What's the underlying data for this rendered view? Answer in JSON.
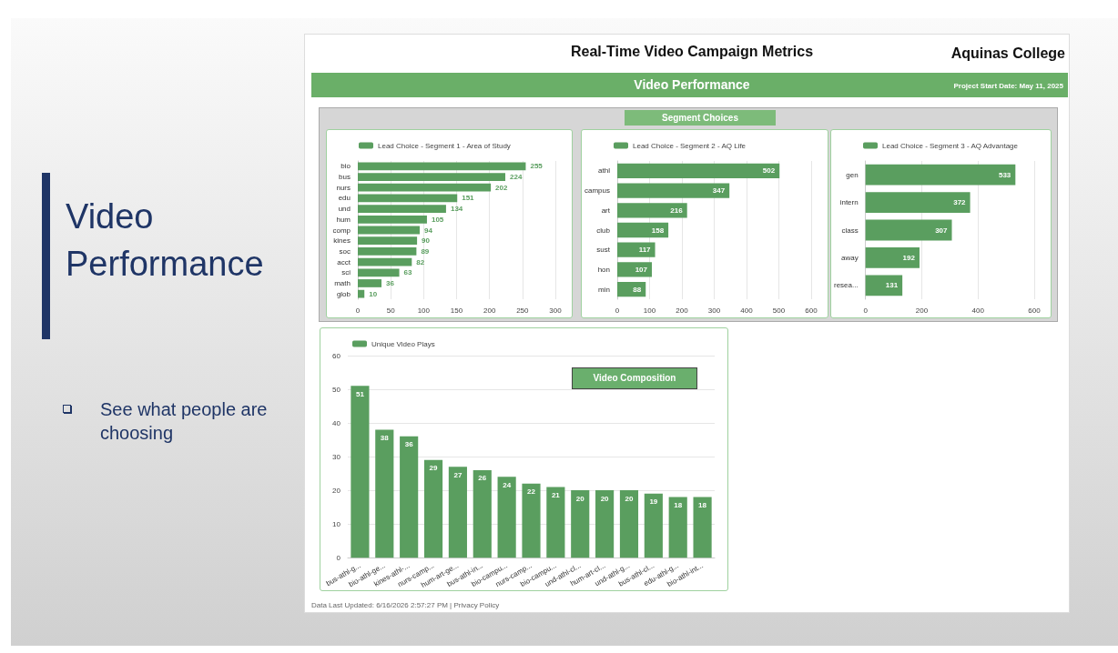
{
  "chart_data": [
    {
      "type": "bar",
      "orientation": "horizontal",
      "title": null,
      "annotations": [
        "Video Performance",
        "See what people are choosing",
        "Real-Time Video Campaign Metrics",
        "Aquinas College",
        "Video Performance",
        "Project Start Date: May 11, 2025",
        "Segment Choices"
      ],
      "categories": [
        "bio",
        "bus",
        "nurs",
        "edu",
        "und",
        "hum",
        "comp",
        "kines",
        "soc",
        "acct",
        "sci",
        "math",
        "glob"
      ],
      "series": [
        {
          "name": "Lead Choice - Segment 1 - Area of Study",
          "color": "#5a9e5f",
          "values": [
            255,
            224,
            202,
            151,
            134,
            105,
            94,
            90,
            89,
            82,
            63,
            36,
            10
          ]
        }
      ],
      "xlim": [
        0,
        300
      ],
      "xticks": [
        0,
        50,
        100,
        150,
        200,
        250,
        300
      ],
      "grid": "x",
      "legend": "top left",
      "data_labels": true
    },
    {
      "type": "bar",
      "orientation": "horizontal",
      "categories": [
        "athl",
        "campus",
        "art",
        "club",
        "sust",
        "hon",
        "min"
      ],
      "series": [
        {
          "name": "Lead Choice - Segment 2 - AQ Life",
          "color": "#5a9e5f",
          "values": [
            502,
            347,
            216,
            158,
            117,
            107,
            88
          ]
        }
      ],
      "xlim": [
        0,
        600
      ],
      "xticks": [
        0,
        100,
        200,
        300,
        400,
        500,
        600
      ],
      "grid": "x",
      "legend": "top left",
      "data_labels": true
    },
    {
      "type": "bar",
      "orientation": "horizontal",
      "categories": [
        "gen",
        "intern",
        "class",
        "away",
        "resea..."
      ],
      "series": [
        {
          "name": "Lead Choice - Segment 3 - AQ Advantage",
          "color": "#5a9e5f",
          "values": [
            533,
            372,
            307,
            192,
            131
          ]
        }
      ],
      "xlim": [
        0,
        600
      ],
      "xticks": [
        0,
        200,
        400,
        600
      ],
      "grid": "x",
      "legend": "top left",
      "data_labels": true
    },
    {
      "type": "bar",
      "annotations": [
        "Video Composition",
        "Data Last Updated: 6/16/2026 2:57:27 PM | Privacy Policy"
      ],
      "categories": [
        "bus-athl-g...",
        "bio-athl-ge...",
        "kines-athl-...",
        "nurs-camp...",
        "hum-art-ge...",
        "bus-athl-in...",
        "bio-campu...",
        "nurs-camp...",
        "bio-campu...",
        "und-athl-cl...",
        "hum-art-cl...",
        "und-athl-g...",
        "bus-athl-cl...",
        "edu-athl-g...",
        "bio-athl-int..."
      ],
      "series": [
        {
          "name": "Unique Video Plays",
          "color": "#5a9e5f",
          "values": [
            51,
            38,
            36,
            29,
            27,
            26,
            24,
            22,
            21,
            20,
            20,
            20,
            19,
            18,
            18
          ]
        }
      ],
      "ylim": [
        0,
        60
      ],
      "yticks": [
        0,
        10,
        20,
        30,
        40,
        50,
        60
      ],
      "grid": "y",
      "legend": "top left",
      "data_labels": true
    }
  ]
}
